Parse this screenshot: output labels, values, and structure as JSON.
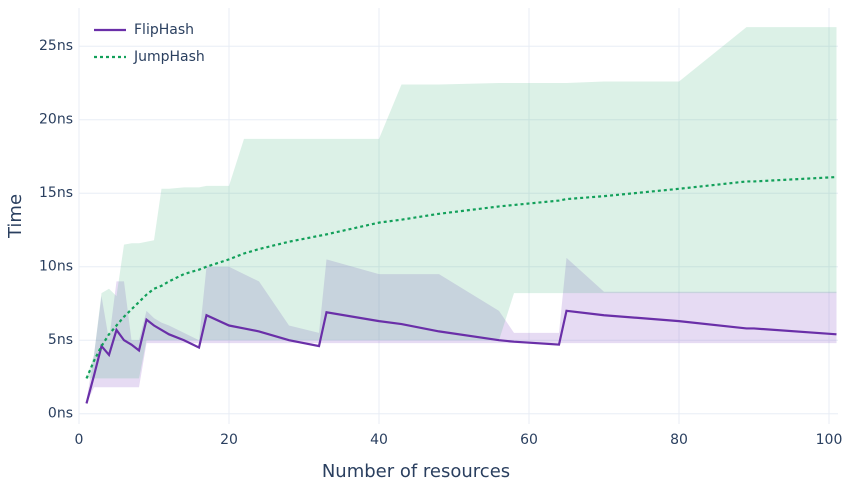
{
  "chart_data": {
    "type": "line",
    "xlabel": "Number of resources",
    "ylabel": "Time",
    "x": [
      1,
      2,
      3,
      4,
      5,
      6,
      7,
      8,
      9,
      10,
      11,
      12,
      14,
      16,
      17,
      20,
      22,
      24,
      28,
      32,
      33,
      40,
      43,
      48,
      56,
      58,
      64,
      65,
      70,
      80,
      89,
      90,
      101
    ],
    "series": [
      {
        "name": "FlipHash",
        "color": "#6a2fa8",
        "dash": "solid",
        "values": [
          0.7,
          2.6,
          4.6,
          4.0,
          5.7,
          5.0,
          4.7,
          4.3,
          6.4,
          6.0,
          5.7,
          5.4,
          5.0,
          4.5,
          6.7,
          6.0,
          5.8,
          5.6,
          5.0,
          4.6,
          6.9,
          6.3,
          6.1,
          5.6,
          5.0,
          4.9,
          4.7,
          7.0,
          6.7,
          6.3,
          5.8,
          5.8,
          5.4
        ],
        "lower": [
          0.7,
          1.8,
          1.8,
          1.8,
          1.8,
          1.8,
          1.8,
          1.8,
          4.8,
          4.8,
          4.8,
          4.8,
          4.8,
          4.8,
          4.8,
          4.8,
          4.8,
          4.8,
          4.8,
          4.8,
          4.8,
          4.8,
          4.8,
          4.8,
          4.8,
          4.8,
          4.8,
          4.8,
          4.8,
          4.8,
          4.8,
          4.8,
          4.8
        ],
        "upper": [
          0.9,
          4,
          8,
          5,
          9,
          9,
          5,
          5,
          7,
          6.5,
          6.2,
          6,
          5.5,
          5,
          10,
          10,
          9.5,
          9,
          6,
          5.5,
          10.5,
          9.5,
          9.5,
          9.5,
          7,
          5.5,
          5.5,
          10.6,
          8.3,
          8.3,
          8.3,
          8.3,
          8.3
        ],
        "band_color": "rgba(140,90,200,0.22)"
      },
      {
        "name": "JumpHash",
        "color": "#12a05a",
        "dash": "dot",
        "values": [
          2.4,
          3.6,
          4.6,
          5.4,
          6.0,
          6.6,
          7.1,
          7.6,
          8.1,
          8.5,
          8.7,
          9.0,
          9.5,
          9.8,
          10.0,
          10.5,
          10.9,
          11.2,
          11.7,
          12.1,
          12.2,
          13.0,
          13.2,
          13.6,
          14.1,
          14.2,
          14.5,
          14.6,
          14.8,
          15.3,
          15.8,
          15.8,
          16.1
        ],
        "lower": [
          2.4,
          2.4,
          2.4,
          2.4,
          2.4,
          2.4,
          2.4,
          2.4,
          5,
          5,
          5,
          5,
          5,
          5,
          5,
          5,
          5,
          5,
          5,
          5,
          5,
          5,
          5,
          5,
          5,
          8.2,
          8.2,
          8.2,
          8.2,
          8.2,
          8.2,
          8.2,
          8.2
        ],
        "upper": [
          2.4,
          4,
          8.2,
          8.5,
          8,
          11.5,
          11.6,
          11.6,
          11.7,
          11.8,
          15.3,
          15.3,
          15.4,
          15.4,
          15.5,
          15.5,
          18.7,
          18.7,
          18.7,
          18.7,
          18.7,
          18.7,
          22.4,
          22.4,
          22.5,
          22.5,
          22.5,
          22.5,
          22.6,
          22.6,
          26.3,
          26.3,
          26.3
        ],
        "band_color": "rgba(60,180,120,0.18)"
      }
    ],
    "xlim": [
      0,
      101.2
    ],
    "xticks": [
      0,
      20,
      40,
      60,
      80,
      100
    ],
    "ylim": [
      -0.7,
      27.6
    ],
    "yticks": [
      {
        "value": 0,
        "label": "0ns"
      },
      {
        "value": 5,
        "label": "5ns"
      },
      {
        "value": 10,
        "label": "10ns"
      },
      {
        "value": 15,
        "label": "15ns"
      },
      {
        "value": 20,
        "label": "20ns"
      },
      {
        "value": 25,
        "label": "25ns"
      }
    ],
    "grid": true,
    "legend": "top-left"
  }
}
